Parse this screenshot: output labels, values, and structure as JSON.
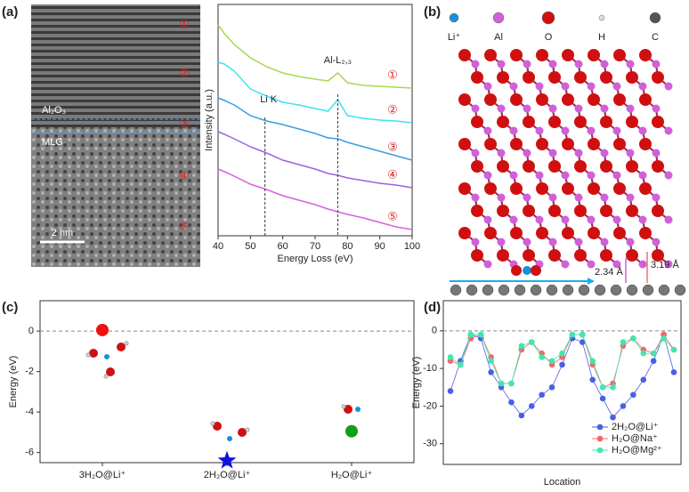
{
  "panel_labels": [
    "(a)",
    "(b)",
    "(c)",
    "(d)"
  ],
  "image_a": {
    "layer_top": "Al₂O₃",
    "layer_bottom": "MLG",
    "scale_bar": "2 nm",
    "regions": [
      "①",
      "②",
      "③",
      "④",
      "⑤"
    ]
  },
  "structure_b": {
    "legend": [
      "Li⁺",
      "Al",
      "O",
      "H",
      "C"
    ],
    "distance_1": "2.34 Å",
    "distance_2": "3.19 Å"
  },
  "chart_data": [
    {
      "type": "line",
      "xlabel": "Energy Loss (eV)",
      "ylabel": "Intensity (a.u.)",
      "x": [
        40,
        42,
        45,
        50,
        55,
        60,
        65,
        70,
        74,
        77,
        80,
        85,
        90,
        95,
        100
      ],
      "xlim": [
        40,
        100
      ],
      "xticks": [
        40,
        50,
        60,
        70,
        80,
        90,
        100
      ],
      "ylim": [
        0,
        260
      ],
      "series": [
        {
          "name": "①",
          "color": "#a8d850",
          "values": [
            237,
            227,
            215,
            200,
            190,
            183,
            179,
            176,
            174,
            183,
            172,
            169,
            168,
            167,
            166
          ]
        },
        {
          "name": "②",
          "color": "#3ee0f0",
          "values": [
            195,
            193,
            185,
            165,
            157,
            150,
            147,
            143,
            140,
            153,
            135,
            132,
            130,
            129,
            127
          ]
        },
        {
          "name": "③",
          "color": "#3a9ee0",
          "values": [
            155,
            152,
            147,
            135,
            129,
            125,
            120,
            115,
            110,
            109,
            105,
            100,
            95,
            90,
            85
          ]
        },
        {
          "name": "④",
          "color": "#a060e0",
          "values": [
            117,
            114,
            109,
            100,
            93,
            85,
            80,
            75,
            70,
            68,
            65,
            62,
            59,
            57,
            54
          ]
        },
        {
          "name": "⑤",
          "color": "#d860e0",
          "values": [
            75,
            72,
            67,
            58,
            52,
            45,
            40,
            35,
            30,
            27,
            24,
            20,
            15,
            10,
            7
          ]
        }
      ],
      "annotations": [
        {
          "label": "Li K",
          "x": 54.5
        },
        {
          "label": "Al-L₂,₃",
          "x": 77
        }
      ]
    },
    {
      "type": "scatter",
      "ylabel": "Energy (eV)",
      "categories": [
        "3H₂O@Li⁺",
        "2H₂O@Li⁺",
        "H₂O@Li⁺"
      ],
      "values": [
        0.05,
        -6.4,
        -4.95
      ],
      "colors": [
        "#f01010",
        "#1010e0",
        "#10a010"
      ],
      "markers": [
        "circle",
        "star",
        "circle"
      ],
      "ylim": [
        -6.5,
        1.5
      ],
      "yticks": [
        0,
        -2,
        -4,
        -6
      ],
      "zero_line": true
    },
    {
      "type": "line",
      "xlabel": "Location",
      "ylabel": "Energy (eV)",
      "categories": [
        null,
        null,
        null,
        null,
        null,
        null,
        null,
        null,
        null,
        null,
        null,
        null,
        null,
        null,
        null,
        null,
        null,
        null,
        null,
        null,
        null,
        null,
        null
      ],
      "ylim": [
        -35.5,
        8
      ],
      "yticks": [
        0,
        -10,
        -20,
        -30
      ],
      "zero_line": true,
      "legend": "lower right",
      "series": [
        {
          "name": "2H₂O@Li⁺",
          "color": "#4a5ee8",
          "values": [
            -16,
            -8,
            -1,
            -2,
            -11,
            -15,
            -19,
            -22.5,
            -20,
            -17,
            -15,
            -9,
            -2,
            -3,
            -13,
            -18,
            -23,
            -20,
            -17,
            -13,
            -8,
            -1,
            -11
          ]
        },
        {
          "name": "H₂O@Na⁺",
          "color": "#f06868",
          "values": [
            -8,
            -9,
            -2,
            -1,
            -7,
            -14,
            -14,
            -5,
            -3,
            -6,
            -9,
            -7,
            -1,
            -1,
            -9,
            -15,
            -14,
            -4,
            -2,
            -5,
            -6,
            -1,
            -5
          ]
        },
        {
          "name": "H₂O@Mg²⁺",
          "color": "#3ee8b0",
          "values": [
            -7,
            -9,
            -1,
            -1,
            -8,
            -14,
            -14,
            -4,
            -3,
            -7,
            -8,
            -6,
            -1,
            -1,
            -8,
            -15,
            -15,
            -3,
            -2,
            -6,
            -6,
            -2,
            -5
          ]
        }
      ]
    }
  ]
}
